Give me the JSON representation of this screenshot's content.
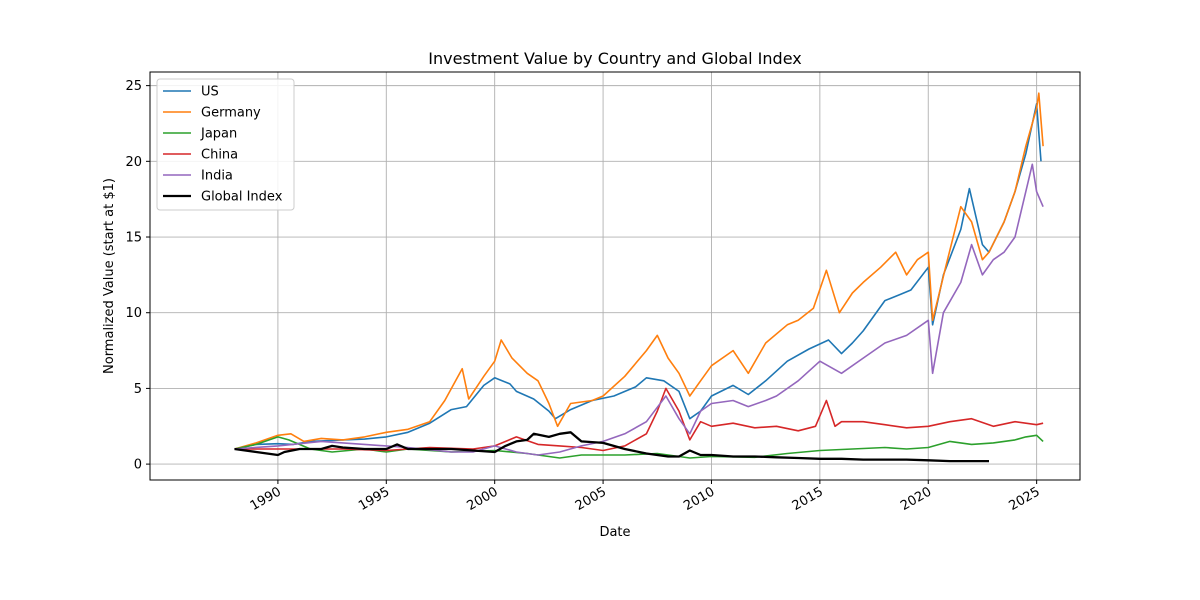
{
  "chart_data": {
    "type": "line",
    "title": "Investment Value by Country and Global Index",
    "xlabel": "Date",
    "ylabel": "Normalized Value (start at $1)",
    "xlim": [
      1984.1,
      2027.0
    ],
    "ylim": [
      -1.05,
      25.9
    ],
    "x_ticks": [
      1990,
      1995,
      2000,
      2005,
      2010,
      2015,
      2020,
      2025
    ],
    "y_ticks": [
      0,
      5,
      10,
      15,
      20,
      25
    ],
    "grid": true,
    "legend_position": "upper-left",
    "series": [
      {
        "name": "US",
        "color": "#1f77b4",
        "width": 1.6,
        "x": [
          1988.0,
          1989.0,
          1990.0,
          1990.7,
          1991.5,
          1993.0,
          1994.0,
          1995.0,
          1996.0,
          1997.0,
          1998.0,
          1998.7,
          1999.5,
          2000.0,
          2000.7,
          2001.0,
          2001.8,
          2002.5,
          2002.8,
          2003.5,
          2004.5,
          2005.5,
          2006.5,
          2007.0,
          2007.8,
          2008.5,
          2009.0,
          2009.5,
          2010.0,
          2011.0,
          2011.7,
          2012.5,
          2013.5,
          2014.5,
          2015.4,
          2016.0,
          2016.5,
          2017.0,
          2018.0,
          2018.7,
          2019.2,
          2020.0,
          2020.2,
          2020.7,
          2021.5,
          2021.9,
          2022.5,
          2022.8,
          2023.5,
          2024.0,
          2024.5,
          2025.0,
          2025.2
        ],
        "values": [
          1.0,
          1.3,
          1.35,
          1.3,
          1.5,
          1.6,
          1.65,
          1.8,
          2.1,
          2.7,
          3.6,
          3.8,
          5.2,
          5.7,
          5.3,
          4.8,
          4.3,
          3.5,
          3.0,
          3.6,
          4.2,
          4.5,
          5.1,
          5.7,
          5.5,
          4.8,
          3.0,
          3.5,
          4.5,
          5.2,
          4.6,
          5.5,
          6.8,
          7.6,
          8.2,
          7.3,
          8.0,
          8.8,
          10.8,
          11.2,
          11.5,
          13.0,
          9.2,
          12.5,
          15.5,
          18.2,
          14.5,
          14.0,
          16.0,
          18.0,
          20.5,
          23.8,
          20.0
        ]
      },
      {
        "name": "Germany",
        "color": "#ff7f0e",
        "width": 1.6,
        "x": [
          1988.0,
          1989.0,
          1990.0,
          1990.6,
          1991.2,
          1992.0,
          1993.0,
          1994.0,
          1995.0,
          1996.0,
          1997.0,
          1997.7,
          1998.5,
          1998.8,
          1999.5,
          2000.0,
          2000.3,
          2000.8,
          2001.5,
          2002.0,
          2002.5,
          2002.9,
          2003.5,
          2004.5,
          2005.0,
          2006.0,
          2007.0,
          2007.5,
          2008.0,
          2008.5,
          2009.0,
          2009.5,
          2010.0,
          2011.0,
          2011.7,
          2012.5,
          2013.5,
          2014.0,
          2014.7,
          2015.3,
          2015.9,
          2016.5,
          2017.0,
          2017.8,
          2018.5,
          2019.0,
          2019.5,
          2020.0,
          2020.2,
          2020.8,
          2021.5,
          2022.0,
          2022.5,
          2022.8,
          2023.5,
          2024.0,
          2024.5,
          2025.0,
          2025.1,
          2025.3
        ],
        "values": [
          1.0,
          1.4,
          1.9,
          2.0,
          1.5,
          1.7,
          1.6,
          1.8,
          2.1,
          2.3,
          2.8,
          4.2,
          6.3,
          4.3,
          5.8,
          6.8,
          8.2,
          7.0,
          6.0,
          5.5,
          4.0,
          2.5,
          4.0,
          4.2,
          4.5,
          5.8,
          7.5,
          8.5,
          7.0,
          6.0,
          4.5,
          5.5,
          6.5,
          7.5,
          6.0,
          8.0,
          9.2,
          9.5,
          10.3,
          12.8,
          10.0,
          11.3,
          12.0,
          13.0,
          14.0,
          12.5,
          13.5,
          14.0,
          9.5,
          13.0,
          17.0,
          16.0,
          13.5,
          14.0,
          16.0,
          18.0,
          21.0,
          23.5,
          24.5,
          21.0
        ]
      },
      {
        "name": "Japan",
        "color": "#2ca02c",
        "width": 1.6,
        "x": [
          1988.0,
          1989.0,
          1990.0,
          1990.5,
          1991.5,
          1992.5,
          1994.0,
          1995.0,
          1996.0,
          1998.0,
          2000.0,
          2001.5,
          2003.0,
          2004.0,
          2006.0,
          2007.5,
          2009.0,
          2010.0,
          2012.0,
          2013.5,
          2015.0,
          2016.5,
          2018.0,
          2019.0,
          2020.0,
          2021.0,
          2022.0,
          2023.0,
          2024.0,
          2024.5,
          2025.0,
          2025.3
        ],
        "values": [
          1.0,
          1.3,
          1.8,
          1.6,
          1.0,
          0.8,
          1.0,
          0.8,
          1.0,
          0.8,
          0.9,
          0.7,
          0.4,
          0.6,
          0.6,
          0.7,
          0.4,
          0.5,
          0.45,
          0.7,
          0.9,
          1.0,
          1.1,
          1.0,
          1.1,
          1.5,
          1.3,
          1.4,
          1.6,
          1.8,
          1.9,
          1.5
        ]
      },
      {
        "name": "China",
        "color": "#d62728",
        "width": 1.6,
        "x": [
          1988.0,
          1990.0,
          1993.0,
          1995.0,
          1997.0,
          1999.0,
          2000.0,
          2001.0,
          2002.0,
          2003.0,
          2004.0,
          2005.0,
          2006.0,
          2007.0,
          2007.5,
          2007.9,
          2008.5,
          2009.0,
          2009.5,
          2010.0,
          2011.0,
          2012.0,
          2013.0,
          2014.0,
          2014.8,
          2015.3,
          2015.7,
          2016.0,
          2017.0,
          2018.0,
          2019.0,
          2020.0,
          2021.0,
          2022.0,
          2023.0,
          2024.0,
          2025.0,
          2025.3
        ],
        "values": [
          1.0,
          1.0,
          1.0,
          0.9,
          1.1,
          1.0,
          1.2,
          1.8,
          1.3,
          1.2,
          1.1,
          0.9,
          1.2,
          2.0,
          3.5,
          5.0,
          3.5,
          1.6,
          2.8,
          2.5,
          2.7,
          2.4,
          2.5,
          2.2,
          2.5,
          4.2,
          2.5,
          2.8,
          2.8,
          2.6,
          2.4,
          2.5,
          2.8,
          3.0,
          2.5,
          2.8,
          2.6,
          2.7
        ]
      },
      {
        "name": "India",
        "color": "#9467bd",
        "width": 1.6,
        "x": [
          1988.0,
          1990.0,
          1992.0,
          1994.0,
          1996.0,
          1998.0,
          1999.0,
          2000.0,
          2001.0,
          2002.0,
          2003.0,
          2004.0,
          2005.0,
          2006.0,
          2007.0,
          2007.9,
          2008.5,
          2009.0,
          2009.5,
          2010.0,
          2011.0,
          2011.7,
          2012.5,
          2013.0,
          2014.0,
          2015.0,
          2016.0,
          2017.0,
          2018.0,
          2019.0,
          2020.0,
          2020.2,
          2020.7,
          2021.5,
          2022.0,
          2022.5,
          2023.0,
          2023.5,
          2024.0,
          2024.8,
          2025.0,
          2025.3
        ],
        "values": [
          1.0,
          1.2,
          1.5,
          1.3,
          1.1,
          0.8,
          0.8,
          1.2,
          0.8,
          0.6,
          0.8,
          1.2,
          1.5,
          2.0,
          2.8,
          4.5,
          3.0,
          2.0,
          3.5,
          4.0,
          4.2,
          3.8,
          4.2,
          4.5,
          5.5,
          6.8,
          6.0,
          7.0,
          8.0,
          8.5,
          9.5,
          6.0,
          10.0,
          12.0,
          14.5,
          12.5,
          13.5,
          14.0,
          15.0,
          19.8,
          18.0,
          17.0
        ]
      },
      {
        "name": "Global Index",
        "color": "#000000",
        "width": 2.3,
        "x": [
          1988.0,
          1989.0,
          1990.0,
          1990.3,
          1991.0,
          1992.0,
          1992.5,
          1993.0,
          1994.0,
          1995.0,
          1995.5,
          1996.0,
          1997.0,
          1998.0,
          1999.0,
          2000.0,
          2000.5,
          2001.0,
          2001.5,
          2001.8,
          2002.5,
          2003.0,
          2003.5,
          2004.0,
          2005.0,
          2006.0,
          2007.0,
          2008.0,
          2008.5,
          2009.0,
          2009.5,
          2010.0,
          2011.0,
          2012.0,
          2013.0,
          2014.0,
          2015.0,
          2016.0,
          2017.0,
          2018.0,
          2019.0,
          2020.0,
          2021.0,
          2022.0,
          2022.8
        ],
        "values": [
          1.0,
          0.8,
          0.6,
          0.8,
          1.0,
          1.0,
          1.2,
          1.1,
          1.0,
          1.0,
          1.3,
          1.0,
          1.0,
          1.0,
          0.9,
          0.8,
          1.2,
          1.5,
          1.6,
          2.0,
          1.8,
          2.0,
          2.1,
          1.5,
          1.4,
          1.0,
          0.7,
          0.5,
          0.5,
          0.9,
          0.6,
          0.6,
          0.5,
          0.5,
          0.45,
          0.4,
          0.35,
          0.35,
          0.3,
          0.3,
          0.3,
          0.25,
          0.2,
          0.2,
          0.2
        ]
      }
    ]
  }
}
